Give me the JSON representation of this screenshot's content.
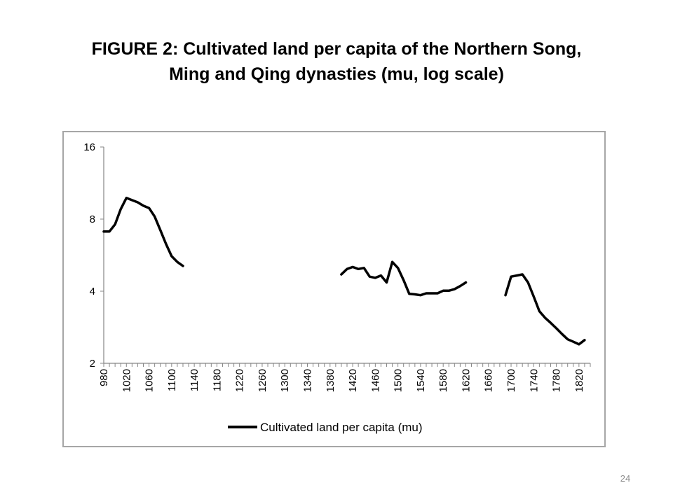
{
  "slide": {
    "title_line1": "FIGURE 2: Cultivated land per capita of the Northern Song,",
    "title_line2": "Ming and Qing dynasties (mu, log scale)",
    "page_number": "24"
  },
  "chart_data": {
    "type": "line",
    "title": "FIGURE 2: Cultivated land per capita of the Northern Song, Ming and Qing dynasties (mu, log scale)",
    "xlabel": "",
    "ylabel": "",
    "y_scale": "log2",
    "ylim": [
      2,
      16
    ],
    "y_ticks": [
      2,
      4,
      8,
      16
    ],
    "xlim": [
      980,
      1840
    ],
    "x_ticks": [
      980,
      1020,
      1060,
      1100,
      1140,
      1180,
      1220,
      1260,
      1300,
      1340,
      1380,
      1420,
      1460,
      1500,
      1540,
      1580,
      1620,
      1660,
      1700,
      1740,
      1780,
      1820
    ],
    "grid": false,
    "legend_position": "bottom",
    "line_color": "#000000",
    "series": [
      {
        "name": "Cultivated land per capita (mu)",
        "segments": [
          [
            [
              980,
              7.1
            ],
            [
              990,
              7.1
            ],
            [
              1000,
              7.6
            ],
            [
              1010,
              8.8
            ],
            [
              1020,
              9.8
            ],
            [
              1030,
              9.6
            ],
            [
              1040,
              9.4
            ],
            [
              1050,
              9.1
            ],
            [
              1060,
              8.9
            ],
            [
              1070,
              8.2
            ],
            [
              1080,
              7.2
            ],
            [
              1090,
              6.3
            ],
            [
              1100,
              5.6
            ],
            [
              1110,
              5.3
            ],
            [
              1120,
              5.1
            ]
          ],
          [
            [
              1400,
              4.7
            ],
            [
              1410,
              4.95
            ],
            [
              1420,
              5.05
            ],
            [
              1430,
              4.95
            ],
            [
              1440,
              5.0
            ],
            [
              1450,
              4.6
            ],
            [
              1460,
              4.55
            ],
            [
              1470,
              4.65
            ],
            [
              1480,
              4.35
            ],
            [
              1490,
              5.3
            ],
            [
              1500,
              5.0
            ],
            [
              1510,
              4.45
            ],
            [
              1520,
              3.9
            ],
            [
              1530,
              3.88
            ],
            [
              1540,
              3.85
            ],
            [
              1550,
              3.92
            ],
            [
              1560,
              3.92
            ],
            [
              1570,
              3.92
            ],
            [
              1580,
              4.02
            ],
            [
              1590,
              4.02
            ],
            [
              1600,
              4.08
            ],
            [
              1610,
              4.2
            ],
            [
              1620,
              4.35
            ]
          ],
          [
            [
              1690,
              3.85
            ],
            [
              1700,
              4.6
            ],
            [
              1710,
              4.65
            ],
            [
              1720,
              4.7
            ],
            [
              1730,
              4.35
            ],
            [
              1740,
              3.8
            ],
            [
              1750,
              3.3
            ],
            [
              1760,
              3.1
            ],
            [
              1770,
              2.95
            ],
            [
              1780,
              2.8
            ],
            [
              1790,
              2.65
            ],
            [
              1800,
              2.52
            ],
            [
              1810,
              2.46
            ],
            [
              1820,
              2.4
            ],
            [
              1830,
              2.5
            ]
          ]
        ]
      }
    ]
  }
}
